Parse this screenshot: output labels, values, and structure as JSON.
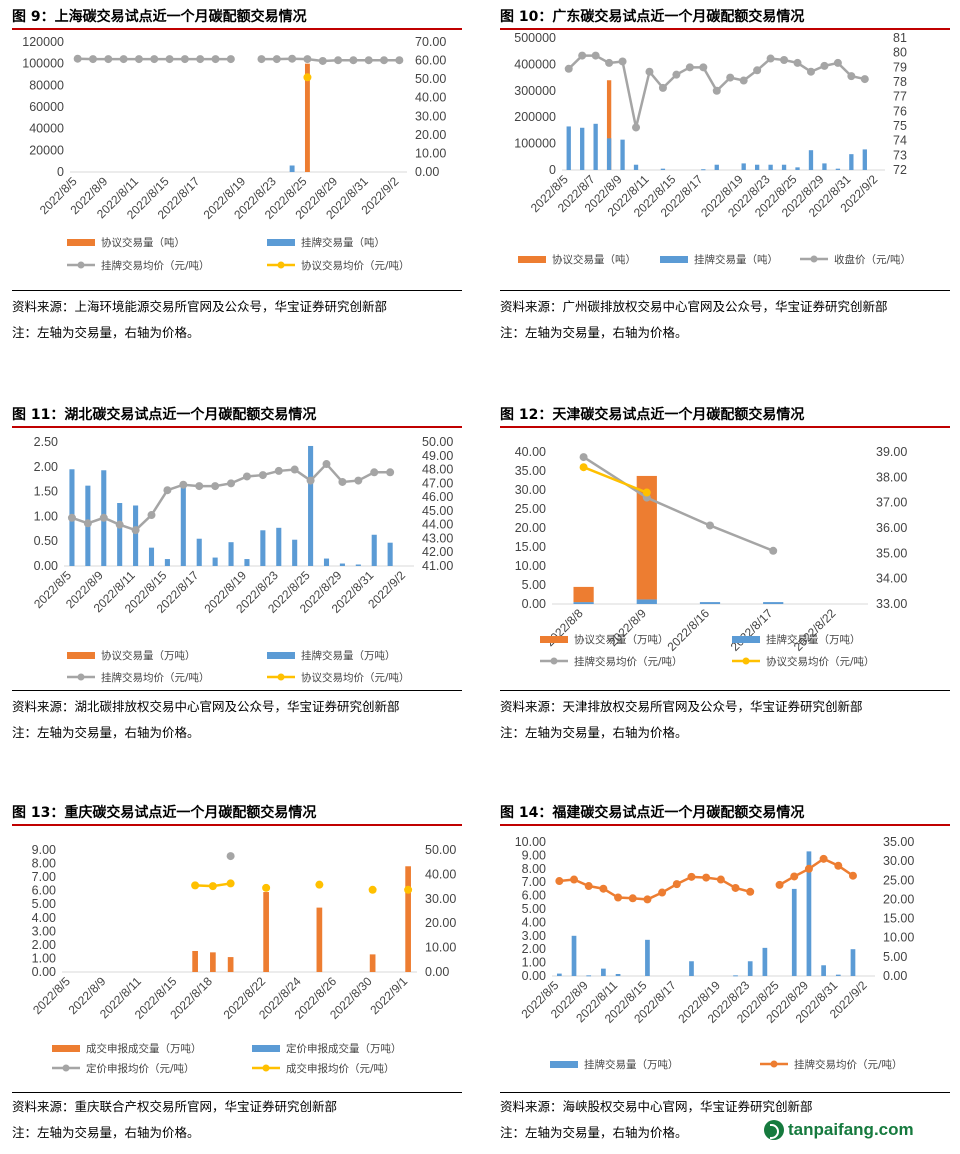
{
  "colors": {
    "orange": "#ED7D31",
    "blue": "#5B9BD5",
    "gray": "#A5A5A5",
    "yellow": "#FFC000",
    "red_rule": "#C00000"
  },
  "watermark": {
    "text": "tanpaifang.com"
  },
  "panels": [
    {
      "title": "图 9：上海碳交易试点近一个月碳配额交易情况",
      "source": "资料来源：上海环境能源交易所官网及公众号，华宝证券研究创新部",
      "note": "注：左轴为交易量，右轴为价格。",
      "chart_data": {
        "type": "bar",
        "x_labels": [
          "2022/8/5",
          "2022/8/9",
          "2022/8/11",
          "2022/8/15",
          "2022/8/17",
          "2022/8/19",
          "2022/8/23",
          "2022/8/25",
          "2022/8/29",
          "2022/8/31",
          "2022/9/2"
        ],
        "n": 22,
        "left_axis": {
          "min": 0,
          "max": 120000,
          "ticks": [
            "0",
            "20000",
            "40000",
            "60000",
            "80000",
            "100000",
            "120000"
          ]
        },
        "right_axis": {
          "min": 0,
          "max": 70,
          "ticks": [
            "0.00",
            "10.00",
            "20.00",
            "30.00",
            "40.00",
            "50.00",
            "60.00",
            "70.00"
          ]
        },
        "bars": [
          {
            "name": "协议交易量（吨）",
            "color": "orange",
            "values": [
              0,
              0,
              0,
              0,
              0,
              0,
              0,
              0,
              0,
              0,
              0,
              0,
              0,
              0,
              0,
              100000,
              0,
              0,
              0,
              0,
              0,
              0
            ]
          },
          {
            "name": "挂牌交易量（吨）",
            "color": "blue",
            "values": [
              0,
              0,
              0,
              0,
              0,
              0,
              0,
              0,
              0,
              0,
              0,
              0,
              0,
              0,
              6000,
              0,
              0,
              0,
              0,
              0,
              0,
              0
            ]
          }
        ],
        "lines": [
          {
            "name": "挂牌交易均价（元/吨）",
            "color": "gray",
            "values": [
              61.0,
              60.8,
              60.8,
              60.8,
              60.8,
              60.8,
              60.8,
              60.8,
              60.8,
              60.8,
              60.8,
              null,
              60.8,
              60.8,
              61.0,
              60.8,
              59.8,
              60.2,
              60.2,
              60.2,
              60.2,
              60.2
            ]
          },
          {
            "name": "协议交易均价（元/吨）",
            "color": "yellow",
            "values": [
              null,
              null,
              null,
              null,
              null,
              null,
              null,
              null,
              null,
              null,
              null,
              null,
              null,
              null,
              null,
              51.0,
              null,
              null,
              null,
              null,
              null,
              null
            ]
          }
        ],
        "legend": [
          {
            "name": "协议交易量（吨）",
            "color": "orange",
            "kind": "bar"
          },
          {
            "name": "挂牌交易量（吨）",
            "color": "blue",
            "kind": "bar"
          },
          {
            "name": "挂牌交易均价（元/吨）",
            "color": "gray",
            "kind": "line"
          },
          {
            "name": "协议交易均价（元/吨）",
            "color": "yellow",
            "kind": "line"
          }
        ]
      }
    },
    {
      "title": "图 10：广东碳交易试点近一个月碳配额交易情况",
      "source": "资料来源：广州碳排放权交易中心官网及公众号，华宝证券研究创新部",
      "note": "注：左轴为交易量，右轴为价格。",
      "chart_data": {
        "type": "bar",
        "x_labels": [
          "2022/8/5",
          "2022/8/7",
          "2022/8/9",
          "2022/8/11",
          "2022/8/15",
          "2022/8/17",
          "2022/8/19",
          "2022/8/23",
          "2022/8/25",
          "2022/8/29",
          "2022/8/31",
          "2022/9/2"
        ],
        "n": 24,
        "left_axis": {
          "min": 0,
          "max": 500000,
          "ticks": [
            "0",
            "100000",
            "200000",
            "300000",
            "400000",
            "500000"
          ]
        },
        "right_axis": {
          "min": 72,
          "max": 81,
          "ticks": [
            "72",
            "73",
            "74",
            "75",
            "76",
            "77",
            "78",
            "79",
            "80",
            "81"
          ]
        },
        "bars": [
          {
            "name": "协议交易量（吨）",
            "color": "orange",
            "values": [
              0,
              0,
              0,
              340000,
              0,
              0,
              0,
              0,
              0,
              0,
              0,
              0,
              0,
              0,
              0,
              0,
              0,
              0,
              0,
              0,
              0,
              0,
              0,
              0
            ]
          },
          {
            "name": "挂牌交易量（吨）",
            "color": "blue",
            "values": [
              165000,
              160000,
              175000,
              120000,
              115000,
              20000,
              0,
              5000,
              0,
              0,
              3000,
              20000,
              0,
              25000,
              20000,
              20000,
              20000,
              10000,
              75000,
              25000,
              5000,
              60000,
              78000,
              0
            ]
          }
        ],
        "lines": [
          {
            "name": "收盘价（元/吨）",
            "color": "gray",
            "values": [
              78.9,
              79.8,
              79.8,
              79.3,
              79.4,
              74.9,
              78.7,
              77.6,
              78.5,
              79.0,
              79.0,
              77.4,
              78.3,
              78.1,
              78.8,
              79.6,
              79.5,
              79.3,
              78.7,
              79.1,
              79.3,
              78.4,
              78.2,
              null
            ]
          }
        ],
        "legend": [
          {
            "name": "协议交易量（吨）",
            "color": "orange",
            "kind": "bar"
          },
          {
            "name": "挂牌交易量（吨）",
            "color": "blue",
            "kind": "bar"
          },
          {
            "name": "收盘价（元/吨）",
            "color": "gray",
            "kind": "line"
          }
        ]
      }
    },
    {
      "title": "图 11：湖北碳交易试点近一个月碳配额交易情况",
      "source": "资料来源：湖北碳排放权交易中心官网及公众号，华宝证券研究创新部",
      "note": "注：左轴为交易量，右轴为价格。",
      "chart_data": {
        "type": "bar",
        "x_labels": [
          "2022/8/5",
          "2022/8/9",
          "2022/8/11",
          "2022/8/15",
          "2022/8/17",
          "2022/8/19",
          "2022/8/23",
          "2022/8/25",
          "2022/8/29",
          "2022/8/31",
          "2022/9/2"
        ],
        "n": 22,
        "left_axis": {
          "min": 0,
          "max": 2.5,
          "ticks": [
            "0.00",
            "0.50",
            "1.00",
            "1.50",
            "2.00",
            "2.50"
          ]
        },
        "right_axis": {
          "min": 41,
          "max": 50,
          "ticks": [
            "41.00",
            "42.00",
            "43.00",
            "44.00",
            "45.00",
            "46.00",
            "47.00",
            "48.00",
            "49.00",
            "50.00"
          ]
        },
        "bars": [
          {
            "name": "协议交易量（万吨）",
            "color": "orange",
            "values": [
              0,
              0,
              0,
              0,
              0,
              0,
              0,
              0,
              0,
              0,
              0,
              0,
              0,
              0,
              0,
              0,
              0,
              0,
              0,
              0,
              0,
              0
            ]
          },
          {
            "name": "挂牌交易量（万吨）",
            "color": "blue",
            "values": [
              1.95,
              1.62,
              1.93,
              1.27,
              1.22,
              0.37,
              0.14,
              1.68,
              0.55,
              0.17,
              0.48,
              0.14,
              0.72,
              0.77,
              0.53,
              2.42,
              0.15,
              0.05,
              0.03,
              0.63,
              0.47,
              0
            ]
          }
        ],
        "lines": [
          {
            "name": "挂牌交易均价（元/吨）",
            "color": "gray",
            "values": [
              44.5,
              44.1,
              44.5,
              44.0,
              43.6,
              44.7,
              46.5,
              46.9,
              46.8,
              46.8,
              47.0,
              47.5,
              47.6,
              47.9,
              48.0,
              47.2,
              48.4,
              47.1,
              47.2,
              47.8,
              47.8,
              null
            ]
          },
          {
            "name": "协议交易均价（元/吨）",
            "color": "yellow",
            "values": []
          }
        ],
        "legend": [
          {
            "name": "协议交易量（万吨）",
            "color": "orange",
            "kind": "bar"
          },
          {
            "name": "挂牌交易量（万吨）",
            "color": "blue",
            "kind": "bar"
          },
          {
            "name": "挂牌交易均价（元/吨）",
            "color": "gray",
            "kind": "line"
          },
          {
            "name": "协议交易均价（元/吨）",
            "color": "yellow",
            "kind": "line"
          }
        ]
      }
    },
    {
      "title": "图 12：天津碳交易试点近一个月碳配额交易情况",
      "source": "资料来源：天津排放权交易所官网及公众号，华宝证券研究创新部",
      "note": "注：左轴为交易量，右轴为价格。",
      "chart_data": {
        "type": "bar",
        "x_labels": [
          "2022/8/8",
          "2022/8/9",
          "2022/8/16",
          "2022/8/17",
          "2022/8/22"
        ],
        "n": 5,
        "left_axis": {
          "min": 0,
          "max": 40,
          "ticks": [
            "0.00",
            "5.00",
            "10.00",
            "15.00",
            "20.00",
            "25.00",
            "30.00",
            "35.00",
            "40.00"
          ]
        },
        "right_axis": {
          "min": 33,
          "max": 39,
          "ticks": [
            "33.00",
            "34.00",
            "35.00",
            "36.00",
            "37.00",
            "38.00",
            "39.00"
          ]
        },
        "bars": [
          {
            "name": "协议交易量（万吨）",
            "color": "orange",
            "stack": true,
            "values": [
              4.0,
              32.5,
              0,
              0,
              0
            ]
          },
          {
            "name": "挂牌交易量（万吨）",
            "color": "blue",
            "stack": true,
            "values": [
              0.5,
              1.2,
              0.5,
              0.5,
              0
            ]
          }
        ],
        "lines": [
          {
            "name": "挂牌交易均价（元/吨）",
            "color": "gray",
            "values": [
              38.8,
              37.2,
              36.1,
              35.1,
              null
            ]
          },
          {
            "name": "协议交易均价（元/吨）",
            "color": "yellow",
            "values": [
              38.4,
              37.4,
              null,
              null,
              null
            ]
          }
        ],
        "legend": [
          {
            "name": "协议交易量（万吨）",
            "color": "orange",
            "kind": "bar"
          },
          {
            "name": "挂牌交易量（万吨）",
            "color": "blue",
            "kind": "bar"
          },
          {
            "name": "挂牌交易均价（元/吨）",
            "color": "gray",
            "kind": "line"
          },
          {
            "name": "协议交易均价（元/吨）",
            "color": "yellow",
            "kind": "line"
          }
        ]
      }
    },
    {
      "title": "图 13：重庆碳交易试点近一个月碳配额交易情况",
      "source": "资料来源：重庆联合产权交易所官网，华宝证券研究创新部",
      "note": "注：左轴为交易量，右轴为价格。",
      "chart_data": {
        "type": "bar",
        "x_labels": [
          "2022/8/5",
          "2022/8/9",
          "2022/8/11",
          "2022/8/15",
          "2022/8/18",
          "2022/8/22",
          "2022/8/24",
          "2022/8/26",
          "2022/8/30",
          "2022/9/1"
        ],
        "n": 20,
        "left_axis": {
          "min": 0,
          "max": 9,
          "ticks": [
            "0.00",
            "1.00",
            "2.00",
            "3.00",
            "4.00",
            "5.00",
            "6.00",
            "7.00",
            "8.00",
            "9.00"
          ]
        },
        "right_axis": {
          "min": 0,
          "max": 50,
          "ticks": [
            "0.00",
            "10.00",
            "20.00",
            "30.00",
            "40.00",
            "50.00"
          ]
        },
        "bars": [
          {
            "name": "成交申报成交量（万吨）",
            "color": "orange",
            "values": [
              0,
              0,
              0,
              0,
              0,
              0,
              0,
              1.55,
              1.45,
              1.1,
              0,
              5.9,
              0,
              0,
              4.75,
              0,
              0,
              1.3,
              0,
              7.8
            ]
          },
          {
            "name": "定价申报成交量（万吨）",
            "color": "blue",
            "values": [
              0,
              0,
              0,
              0,
              0,
              0,
              0,
              0,
              0,
              0,
              0,
              0,
              0,
              0,
              0,
              0,
              0,
              0,
              0,
              0
            ]
          }
        ],
        "lines": [
          {
            "name": "定价申报均价（元/吨）",
            "color": "gray",
            "values": [
              null,
              null,
              null,
              null,
              null,
              null,
              null,
              null,
              null,
              47.5,
              null,
              null,
              null,
              null,
              null,
              null,
              null,
              null,
              null,
              null
            ]
          },
          {
            "name": "成交申报均价（元/吨）",
            "color": "yellow",
            "values": [
              null,
              null,
              null,
              null,
              null,
              null,
              null,
              35.5,
              35.2,
              36.3,
              null,
              34.5,
              null,
              null,
              35.8,
              null,
              null,
              33.7,
              null,
              33.7
            ]
          }
        ],
        "legend": [
          {
            "name": "成交申报成交量（万吨）",
            "color": "orange",
            "kind": "bar"
          },
          {
            "name": "定价申报成交量（万吨）",
            "color": "blue",
            "kind": "bar"
          },
          {
            "name": "定价申报均价（元/吨）",
            "color": "gray",
            "kind": "line"
          },
          {
            "name": "成交申报均价（元/吨）",
            "color": "yellow",
            "kind": "line"
          }
        ]
      }
    },
    {
      "title": "图 14：福建碳交易试点近一个月碳配额交易情况",
      "source": "资料来源：海峡股权交易中心官网，华宝证券研究创新部",
      "note": "注：左轴为交易量，右轴为价格。",
      "chart_data": {
        "type": "bar",
        "x_labels": [
          "2022/8/5",
          "2022/8/9",
          "2022/8/11",
          "2022/8/15",
          "2022/8/17",
          "2022/8/19",
          "2022/8/23",
          "2022/8/25",
          "2022/8/29",
          "2022/8/31",
          "2022/9/2"
        ],
        "n": 22,
        "left_axis": {
          "min": 0,
          "max": 10,
          "ticks": [
            "0.00",
            "1.00",
            "2.00",
            "3.00",
            "4.00",
            "5.00",
            "6.00",
            "7.00",
            "8.00",
            "9.00",
            "10.00"
          ]
        },
        "right_axis": {
          "min": 0,
          "max": 35,
          "ticks": [
            "0.00",
            "5.00",
            "10.00",
            "15.00",
            "20.00",
            "25.00",
            "30.00",
            "35.00"
          ]
        },
        "bars": [
          {
            "name": "挂牌交易量（万吨）",
            "color": "blue",
            "values": [
              0.18,
              3.0,
              0.05,
              0.55,
              0.15,
              0,
              2.7,
              0,
              0,
              1.1,
              0,
              0,
              0.05,
              1.1,
              2.1,
              0,
              6.5,
              9.3,
              0.8,
              0.1,
              2.0,
              0
            ]
          }
        ],
        "lines": [
          {
            "name": "挂牌交易均价（元/吨）",
            "color": "orange",
            "values": [
              24.8,
              25.2,
              23.5,
              22.8,
              20.5,
              20.3,
              20.0,
              21.8,
              24.0,
              25.9,
              25.7,
              25.2,
              23.0,
              22.0,
              null,
              23.8,
              26.0,
              28.0,
              30.6,
              28.8,
              26.2,
              null
            ]
          }
        ],
        "legend": [
          {
            "name": "挂牌交易量（万吨）",
            "color": "blue",
            "kind": "bar"
          },
          {
            "name": "挂牌交易均价（元/吨）",
            "color": "orange",
            "kind": "line"
          }
        ]
      }
    }
  ]
}
